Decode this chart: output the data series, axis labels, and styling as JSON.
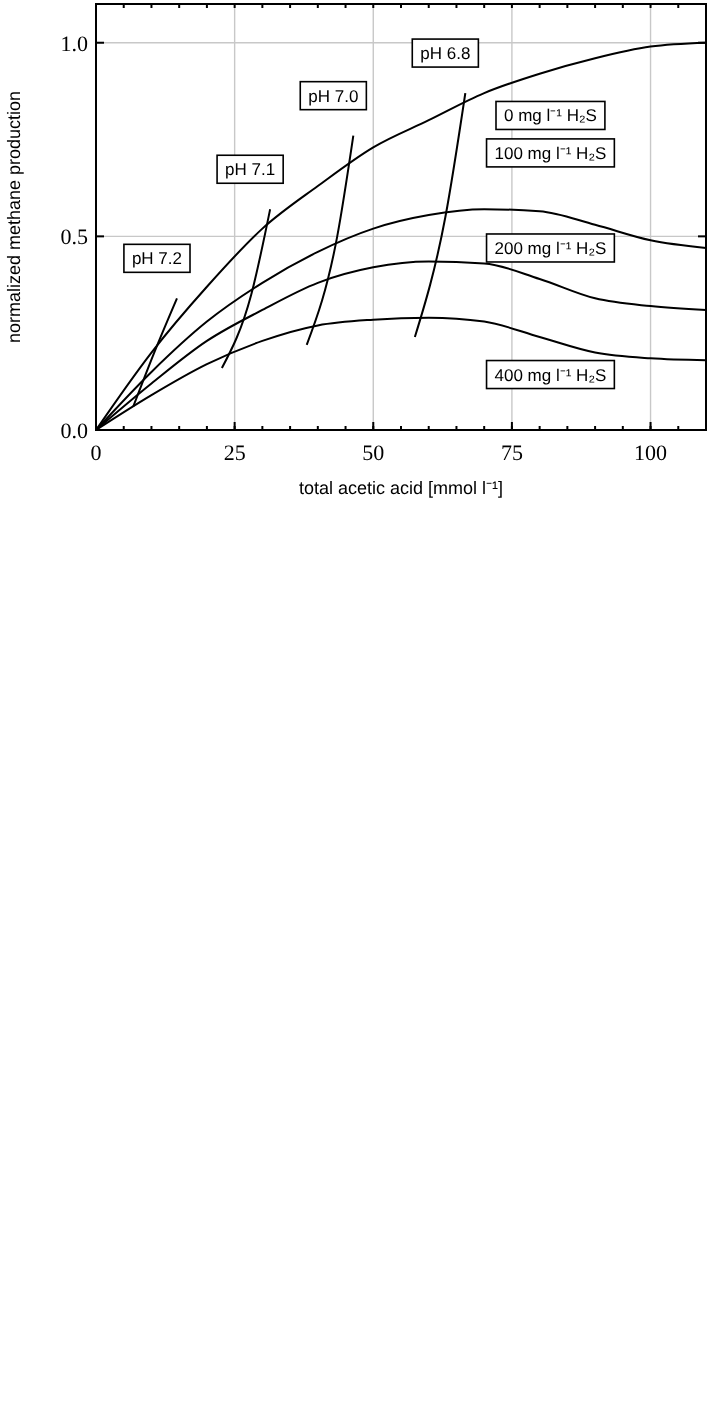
{
  "chart_data": {
    "type": "line",
    "xlabel": "total acetic acid [mmol l⁻¹]",
    "ylabel": "normalized methane production",
    "xlim": [
      0,
      110
    ],
    "ylim": [
      0,
      1.1
    ],
    "xticks": [
      0,
      25,
      50,
      75,
      100
    ],
    "yticks": [
      {
        "value": 0,
        "label": "0.0"
      },
      {
        "value": 0.5,
        "label": "0.5"
      },
      {
        "value": 1,
        "label": "1.0"
      }
    ],
    "grid": true,
    "marker": "none",
    "line_style": "solid",
    "series": [
      {
        "name": "0  mg l⁻¹ H₂S",
        "color": "#000000",
        "x": [
          0,
          10,
          20,
          30,
          40,
          50,
          60,
          70,
          80,
          90,
          100,
          110
        ],
        "values": [
          0,
          0.2,
          0.37,
          0.52,
          0.63,
          0.73,
          0.8,
          0.87,
          0.92,
          0.96,
          0.99,
          1.0
        ]
      },
      {
        "name": "100 mg l⁻¹ H₂S",
        "color": "#000000",
        "x": [
          0,
          10,
          20,
          30,
          40,
          50,
          60,
          70,
          80,
          90,
          100,
          110
        ],
        "values": [
          0,
          0.15,
          0.28,
          0.38,
          0.46,
          0.52,
          0.555,
          0.57,
          0.565,
          0.53,
          0.49,
          0.47
        ]
      },
      {
        "name": "200 mg l⁻¹ H₂S",
        "color": "#000000",
        "x": [
          0,
          10,
          20,
          30,
          40,
          50,
          60,
          70,
          80,
          90,
          100,
          110
        ],
        "values": [
          0,
          0.12,
          0.23,
          0.31,
          0.38,
          0.42,
          0.435,
          0.43,
          0.39,
          0.34,
          0.32,
          0.31
        ]
      },
      {
        "name": "400 mg l⁻¹ H₂S",
        "color": "#000000",
        "x": [
          0,
          10,
          20,
          30,
          40,
          50,
          60,
          70,
          80,
          90,
          100,
          110
        ],
        "values": [
          0,
          0.09,
          0.17,
          0.23,
          0.27,
          0.285,
          0.29,
          0.28,
          0.24,
          0.2,
          0.185,
          0.18
        ]
      },
      {
        "name": "pH 7.2",
        "color": "#000000",
        "x": [
          6.7,
          10.5,
          14.6
        ],
        "values": [
          0.06,
          0.2,
          0.34
        ]
      },
      {
        "name": "pH 7.1",
        "color": "#000000",
        "x": [
          22.7,
          28,
          31.4
        ],
        "values": [
          0.16,
          0.35,
          0.57
        ]
      },
      {
        "name": "pH 7.0",
        "color": "#000000",
        "x": [
          38,
          43.5,
          46.4
        ],
        "values": [
          0.22,
          0.5,
          0.76
        ]
      },
      {
        "name": "pH 6.8",
        "color": "#000000",
        "x": [
          57.5,
          63,
          66.6
        ],
        "values": [
          0.24,
          0.55,
          0.87
        ]
      }
    ]
  }
}
